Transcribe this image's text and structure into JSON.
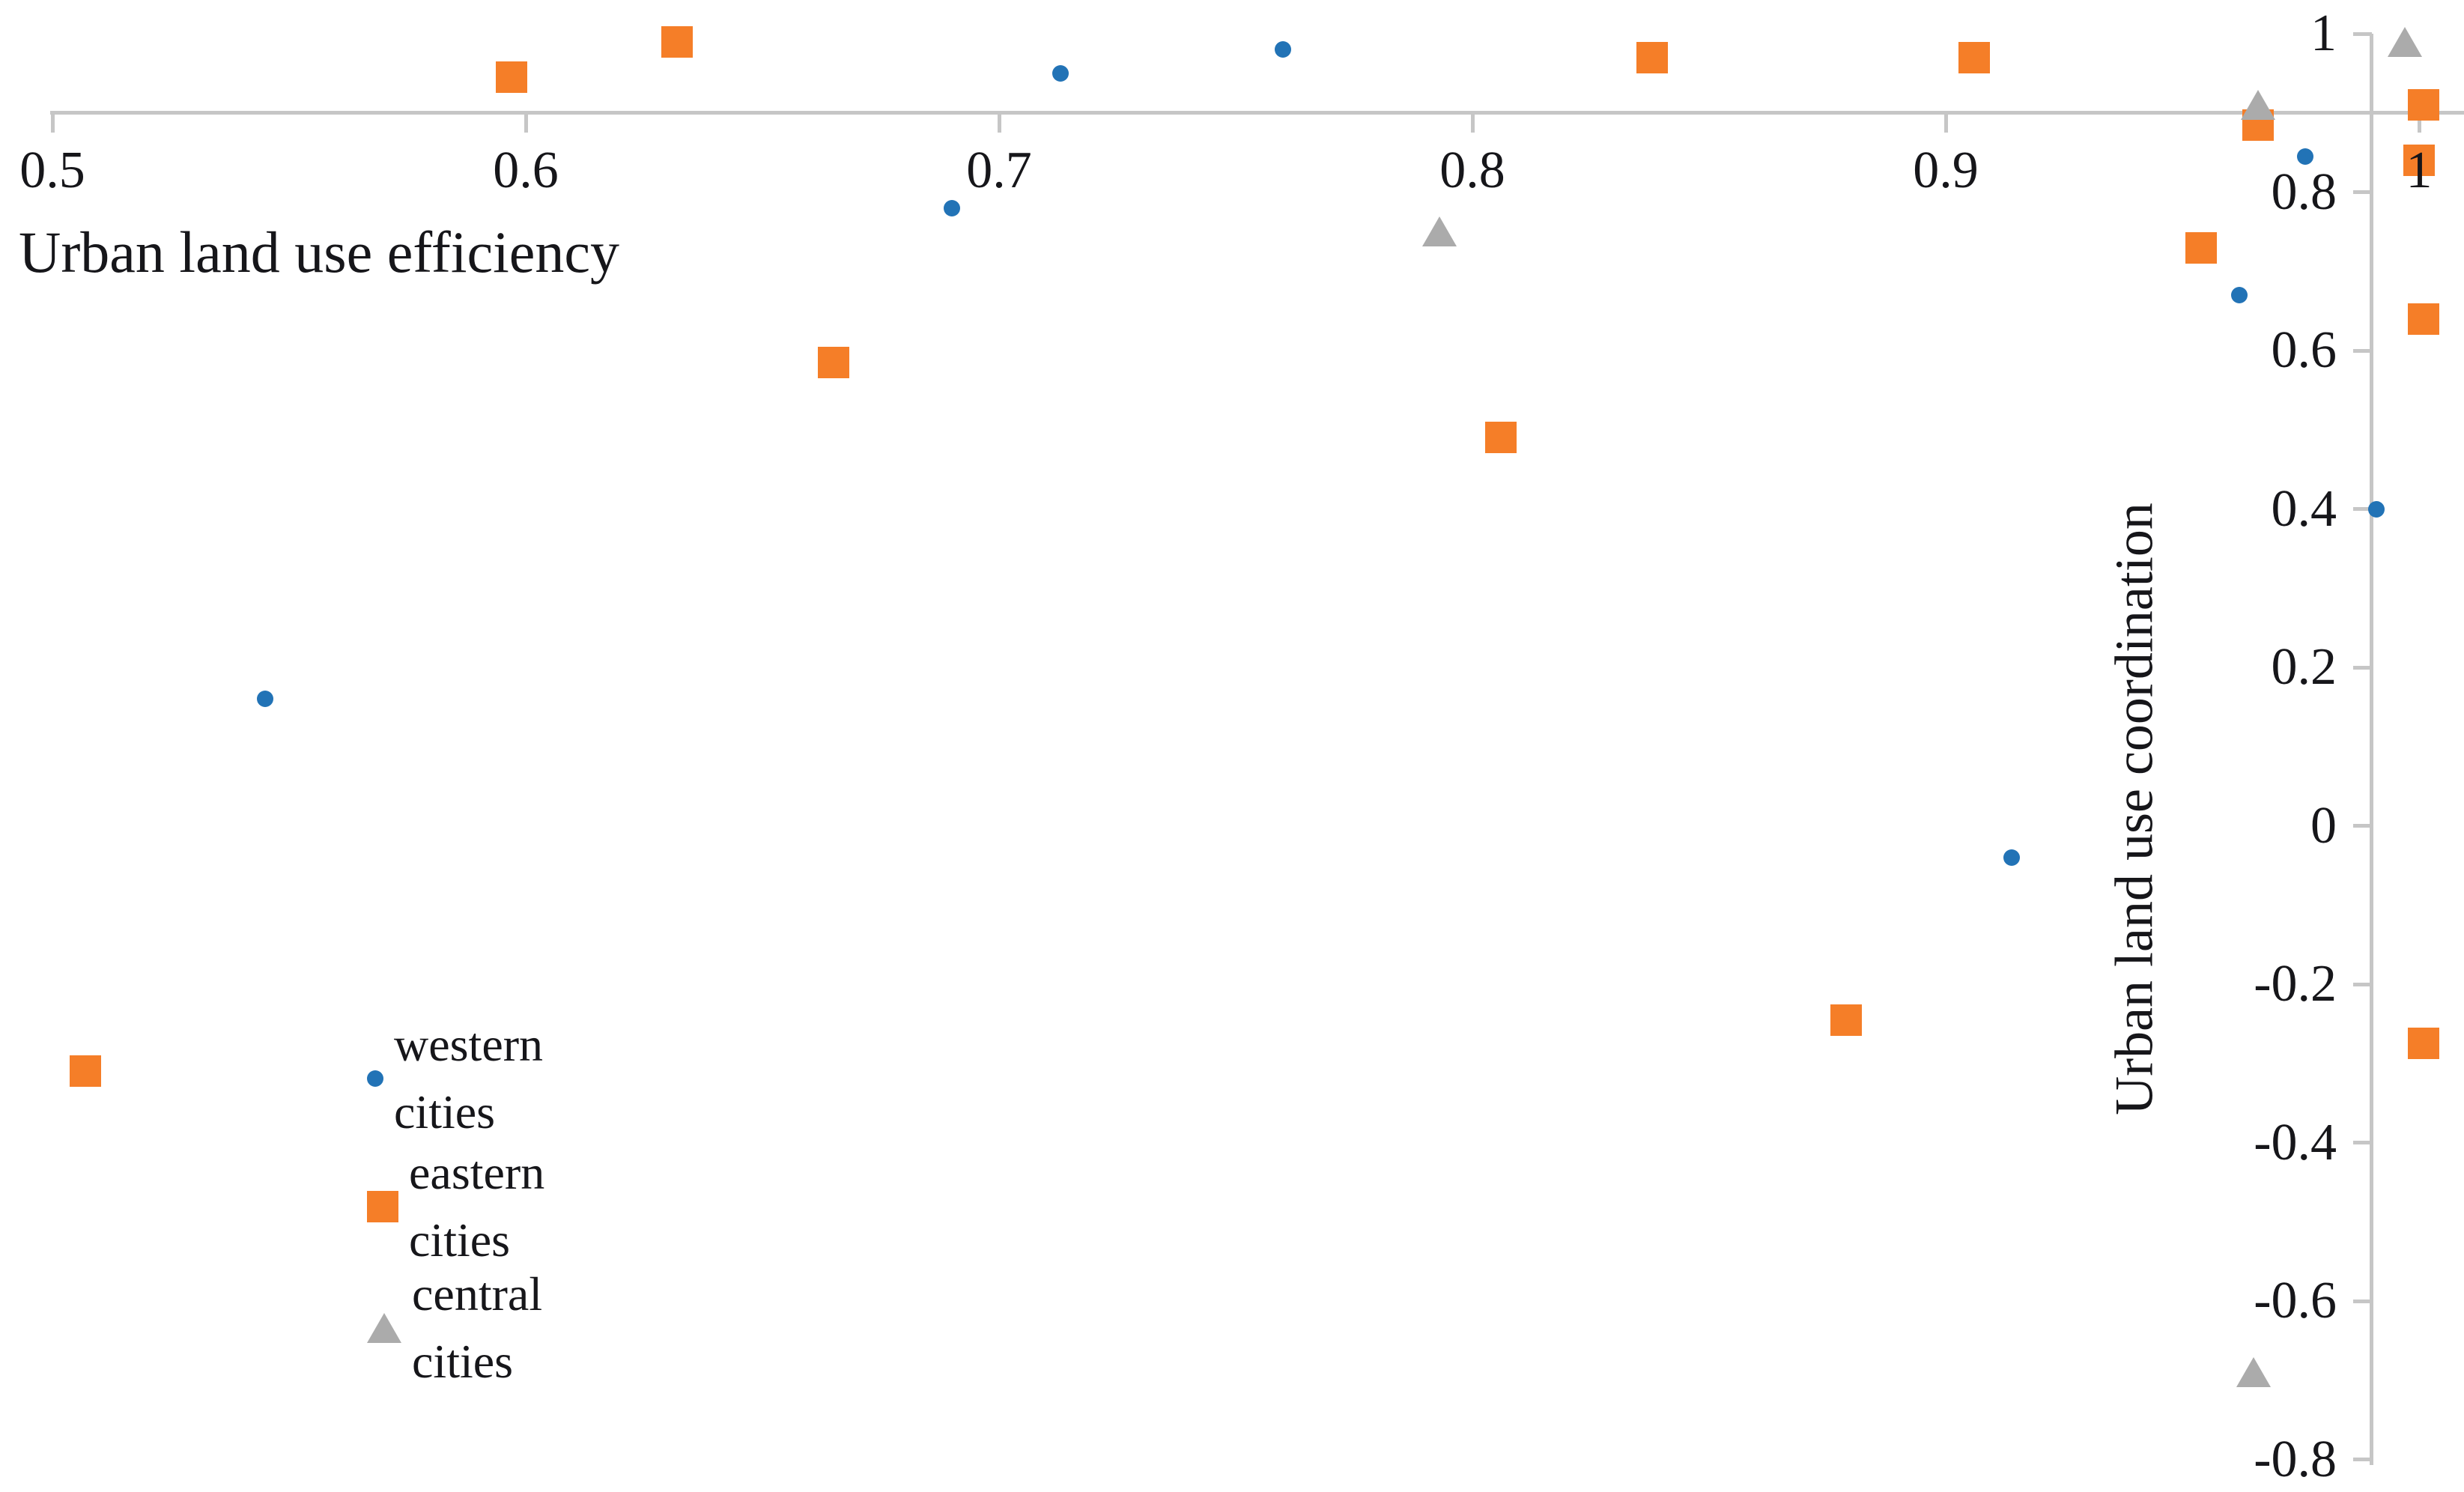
{
  "chart_data": {
    "type": "scatter",
    "title": "",
    "xlabel": "Urban land use efficiency",
    "ylabel": "Urban land use coordination",
    "xlim": [
      0.5,
      1.0
    ],
    "ylim": [
      -0.8,
      1.0
    ],
    "x_ticks": [
      0.5,
      0.6,
      0.7,
      0.8,
      0.9,
      1
    ],
    "x_tick_labels": [
      "0.5",
      "0.6",
      "0.7",
      "0.8",
      "0.9",
      "1"
    ],
    "y_ticks": [
      1,
      0.8,
      0.6,
      0.4,
      0.2,
      0,
      -0.2,
      -0.4,
      -0.6,
      -0.8
    ],
    "y_tick_labels": [
      "1",
      "0.8",
      "0.6",
      "0.4",
      "0.2",
      "0",
      "-0.2",
      "-0.4",
      "-0.6",
      "-0.8"
    ],
    "x_axis_crosses_at_y": 0.9,
    "y_axis_crosses_at_x": 0.99,
    "grid": false,
    "legend_position": "inside-lower-left",
    "axis_color": "#c6c6c6",
    "series": [
      {
        "name": "western cities",
        "marker": "circle",
        "color": "#2273b6",
        "points": [
          [
            0.545,
            0.16
          ],
          [
            0.69,
            0.78
          ],
          [
            0.713,
            0.95
          ],
          [
            0.76,
            0.98
          ],
          [
            0.914,
            -0.04
          ],
          [
            0.962,
            0.67
          ],
          [
            0.976,
            0.845
          ],
          [
            0.991,
            0.4
          ]
        ]
      },
      {
        "name": "eastern cities",
        "marker": "square",
        "color": "#f57e28",
        "points": [
          [
            0.507,
            -0.31
          ],
          [
            0.597,
            0.945
          ],
          [
            0.632,
            0.99
          ],
          [
            0.665,
            0.585
          ],
          [
            0.806,
            0.49
          ],
          [
            0.838,
            0.97
          ],
          [
            0.906,
            0.97
          ],
          [
            0.879,
            -0.245
          ],
          [
            0.954,
            0.73
          ],
          [
            0.966,
            0.885
          ],
          [
            1.001,
            0.91
          ],
          [
            1.0,
            0.84
          ],
          [
            1.001,
            0.64
          ],
          [
            1.001,
            -0.275
          ]
        ]
      },
      {
        "name": "central cities",
        "marker": "triangle",
        "color": "#ababab",
        "points": [
          [
            0.793,
            0.75
          ],
          [
            0.966,
            0.91
          ],
          [
            0.997,
            0.99
          ],
          [
            0.965,
            -0.69
          ]
        ]
      }
    ]
  }
}
